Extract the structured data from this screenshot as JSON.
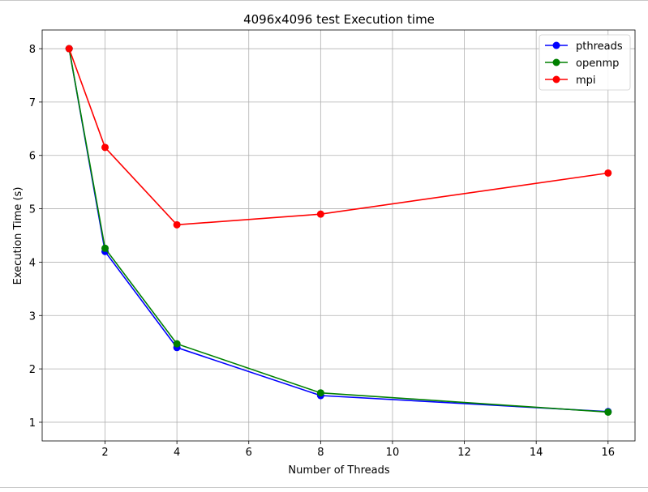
{
  "chart_data": {
    "type": "line",
    "title": "4096x4096 test Execution time",
    "xlabel": "Number of Threads",
    "ylabel": "Execution Time (s)",
    "x": [
      1,
      2,
      4,
      8,
      16
    ],
    "xlim": [
      0.25,
      16.75
    ],
    "ylim": [
      0.65,
      8.35
    ],
    "xticks": [
      2,
      4,
      6,
      8,
      10,
      12,
      14,
      16
    ],
    "yticks": [
      1,
      2,
      3,
      4,
      5,
      6,
      7,
      8
    ],
    "grid": true,
    "legend_position": "top-right",
    "series": [
      {
        "name": "pthreads",
        "color": "#0000ff",
        "values": [
          8.0,
          4.2,
          2.4,
          1.5,
          1.2
        ]
      },
      {
        "name": "openmp",
        "color": "#008000",
        "values": [
          8.0,
          4.26,
          2.47,
          1.55,
          1.19
        ]
      },
      {
        "name": "mpi",
        "color": "#ff0000",
        "values": [
          8.0,
          6.15,
          4.7,
          4.9,
          5.67
        ]
      }
    ]
  }
}
